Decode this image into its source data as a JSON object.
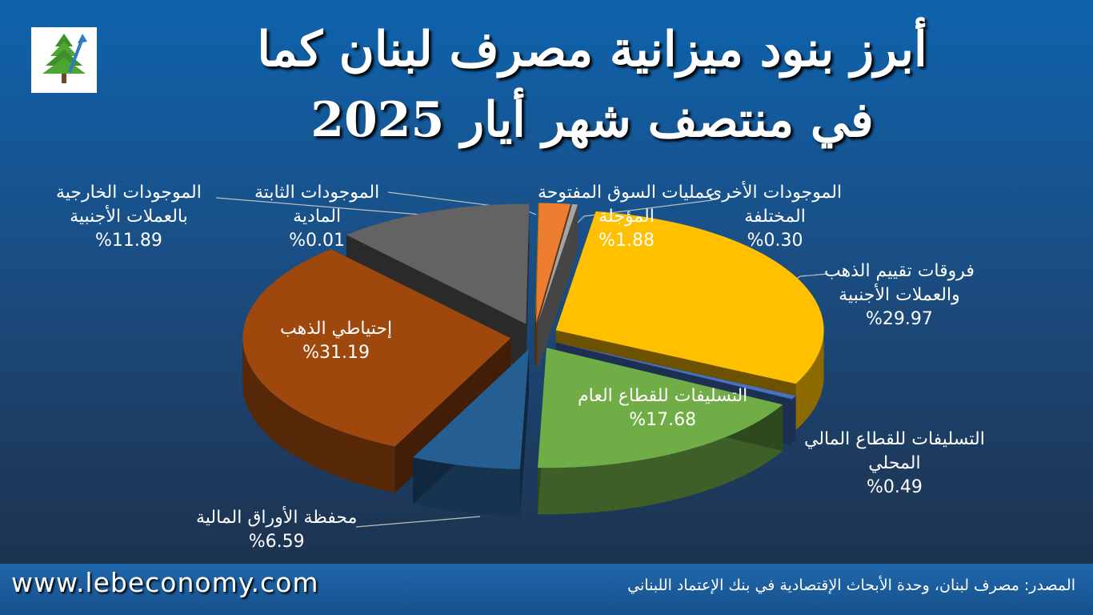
{
  "header": {
    "title_line1": "أبرز بنود ميزانية مصرف لبنان كما",
    "title_line2": "في منتصف شهر أيار 2025"
  },
  "footer": {
    "website": "www.lebeconomy.com",
    "source": "المصدر: مصرف لبنان، وحدة الأبحاث الإقتصادية في بنك الإعتماد اللبناني"
  },
  "chart_data": {
    "type": "pie",
    "title": "أبرز بنود ميزانية مصرف لبنان كما في منتصف شهر أيار 2025",
    "unit": "%",
    "slices": [
      {
        "name": "عمليات السوق المفتوحة المؤجلة",
        "value": 1.88,
        "value_label": "%1.88",
        "color": "#ed7d31"
      },
      {
        "name": "الموجودات الأخرى المختلفة",
        "value": 0.3,
        "value_label": "%0.30",
        "color": "#a5a5a5"
      },
      {
        "name": "فروقات تقييم الذهب والعملات الأجنبية",
        "value": 29.97,
        "value_label": "%29.97",
        "color": "#ffc000"
      },
      {
        "name": "التسليفات للقطاع المالي المحلي",
        "value": 0.49,
        "value_label": "%0.49",
        "color": "#4472c4"
      },
      {
        "name": "التسليفات للقطاع العام",
        "value": 17.68,
        "value_label": "%17.68",
        "color": "#70ad47"
      },
      {
        "name": "محفظة الأوراق المالية",
        "value": 6.59,
        "value_label": "%6.59",
        "color": "#255e91"
      },
      {
        "name": "إحتياطي الذهب",
        "value": 31.19,
        "value_label": "%31.19",
        "color": "#9e480e"
      },
      {
        "name": "الموجودات الخارجية بالعملات الأجنبية",
        "value": 11.89,
        "value_label": "%11.89",
        "color": "#636363"
      },
      {
        "name": "الموجودات الثابتة المادية",
        "value": 0.01,
        "value_label": "%0.01",
        "color": "#997300"
      }
    ],
    "labels": {
      "deferred_omo": {
        "l1": "عمليات السوق المفتوحة",
        "l2": "المؤجلة"
      },
      "other_assets": {
        "l1": "الموجودات الأخرى",
        "l2": "المختلفة"
      },
      "valuation": {
        "l1": "فروقات تقييم الذهب",
        "l2": "والعملات الأجنبية"
      },
      "local_fin": {
        "l1": "التسليفات للقطاع المالي",
        "l2": "المحلي"
      },
      "public_sector": {
        "l1": "التسليفات للقطاع العام"
      },
      "securities": {
        "l1": "محفظة الأوراق المالية"
      },
      "gold": {
        "l1": "إحتياطي الذهب"
      },
      "foreign_assets": {
        "l1": "الموجودات الخارجية",
        "l2": "بالعملات الأجنبية"
      },
      "fixed_assets": {
        "l1": "الموجودات الثابتة",
        "l2": "المادية"
      }
    }
  }
}
